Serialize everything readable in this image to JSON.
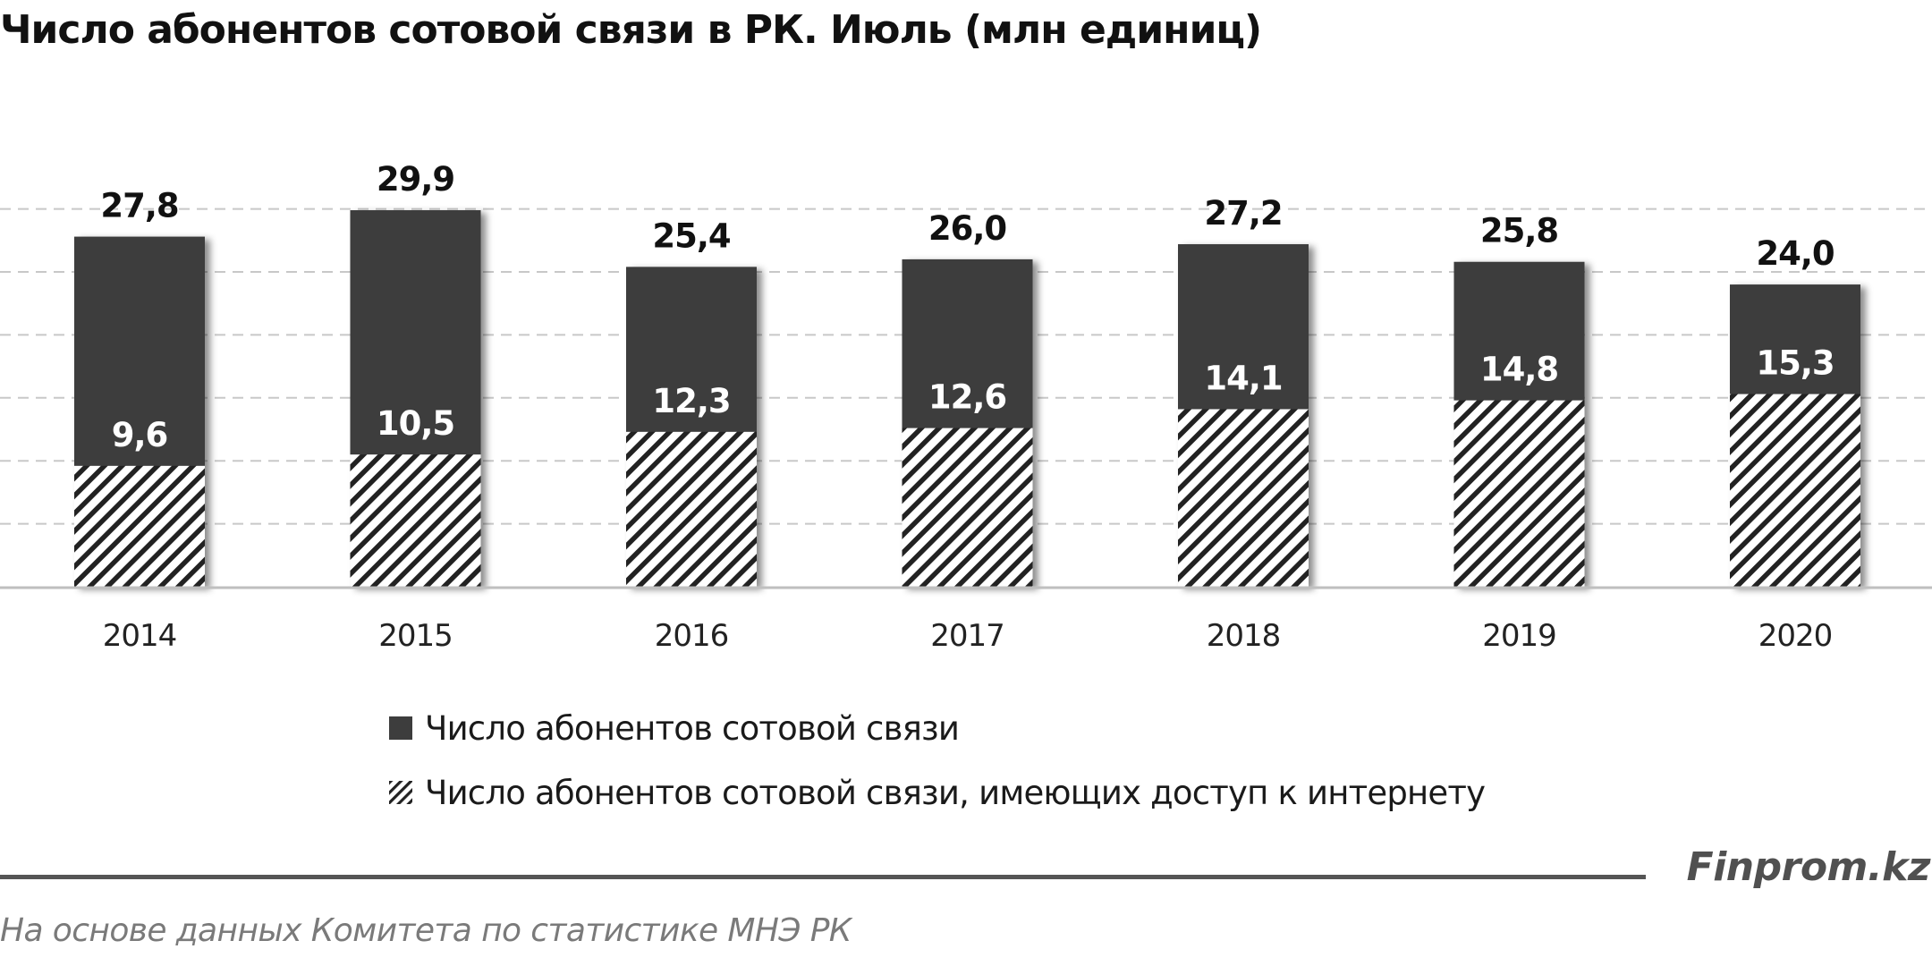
{
  "chart_data": {
    "type": "bar",
    "stacked": "overlay",
    "title": "Число абонентов сотовой связи  в РК. Июль (млн единиц)",
    "categories": [
      "2014",
      "2015",
      "2016",
      "2017",
      "2018",
      "2019",
      "2020"
    ],
    "series": [
      {
        "name": "Число абонентов сотовой связи",
        "values": [
          27.8,
          29.9,
          25.4,
          26.0,
          27.2,
          25.8,
          24.0
        ],
        "labels": [
          "27,8",
          "29,9",
          "25,4",
          "26,0",
          "27,2",
          "25,8",
          "24,0"
        ],
        "color": "#3d3d3d",
        "pattern": "solid"
      },
      {
        "name": "Число абонентов сотовой связи, имеющих доступ к интернету",
        "values": [
          9.6,
          10.5,
          12.3,
          12.6,
          14.1,
          14.8,
          15.3
        ],
        "labels": [
          "9,6",
          "10,5",
          "12,3",
          "12,6",
          "14,1",
          "14,8",
          "15,3"
        ],
        "color": "#3d3d3d",
        "pattern": "diagonal-hatch"
      }
    ],
    "ylim": [
      0,
      35
    ],
    "grid": true,
    "y_axis_labels_visible": false,
    "legend_position": "bottom"
  },
  "branding": {
    "logo": "Finprom.kz",
    "source": "На основе данных  Комитета по статистике МНЭ РК"
  }
}
